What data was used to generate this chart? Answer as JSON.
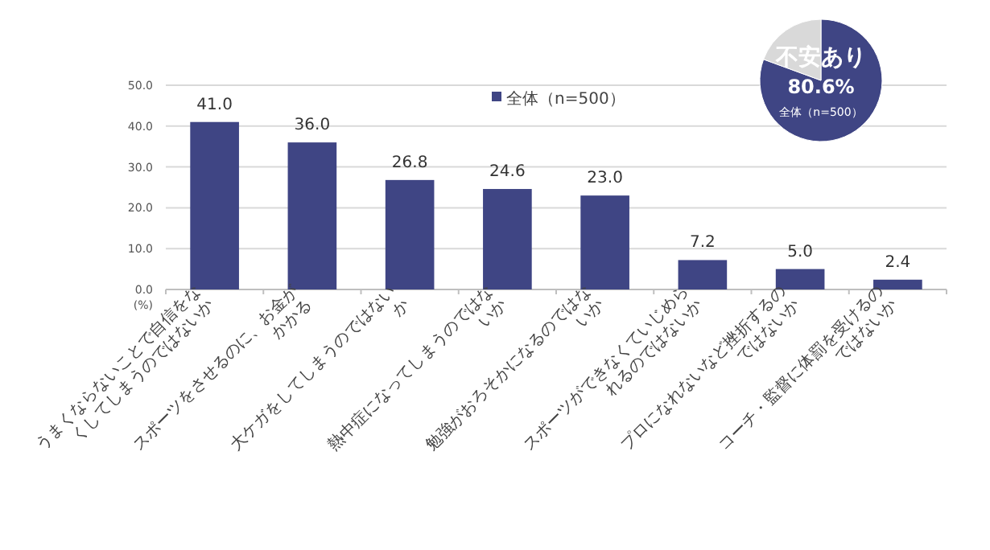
{
  "chart_data": [
    {
      "type": "bar",
      "ylabel": "(%)",
      "categories": [
        "うまくならないことで自信をなくしてしまうのではないか",
        "スポーツをさせるのに、お金がかかる",
        "大ケガをしてしまうのではないか",
        "熱中症になってしまうのではないか",
        "勉強がおろそかになるのではないか",
        "スポーツができなくていじめられるのではないか",
        "プロになれないなど挫折するのではないか",
        "コーチ・監督に体罰を受けるのではないか"
      ],
      "series": [
        {
          "name": "全体（n=500）",
          "color": "#3f4584",
          "values": [
            41.0,
            36.0,
            26.8,
            24.6,
            23.0,
            7.2,
            5.0,
            2.4
          ],
          "value_labels": [
            "41.0",
            "36.0",
            "26.8",
            "24.6",
            "23.0",
            "7.2",
            "5.0",
            "2.4"
          ]
        }
      ],
      "ylim": [
        0,
        50
      ],
      "yticks": [
        {
          "value": 0,
          "label": "0.0"
        },
        {
          "value": 10,
          "label": "10.0"
        },
        {
          "value": 20,
          "label": "20.0"
        },
        {
          "value": 30,
          "label": "30.0"
        },
        {
          "value": 40,
          "label": "40.0"
        },
        {
          "value": 50,
          "label": "50.0"
        }
      ],
      "grid": "y",
      "legend": "top"
    },
    {
      "type": "pie",
      "categories": [
        "不安あり",
        null
      ],
      "values": [
        80.6,
        19.4
      ],
      "colors": [
        "#3f4584",
        "#d9d9d9"
      ],
      "value_labels": [
        "80.6%",
        null
      ],
      "annotations": [
        "全体（n=500）"
      ]
    }
  ]
}
